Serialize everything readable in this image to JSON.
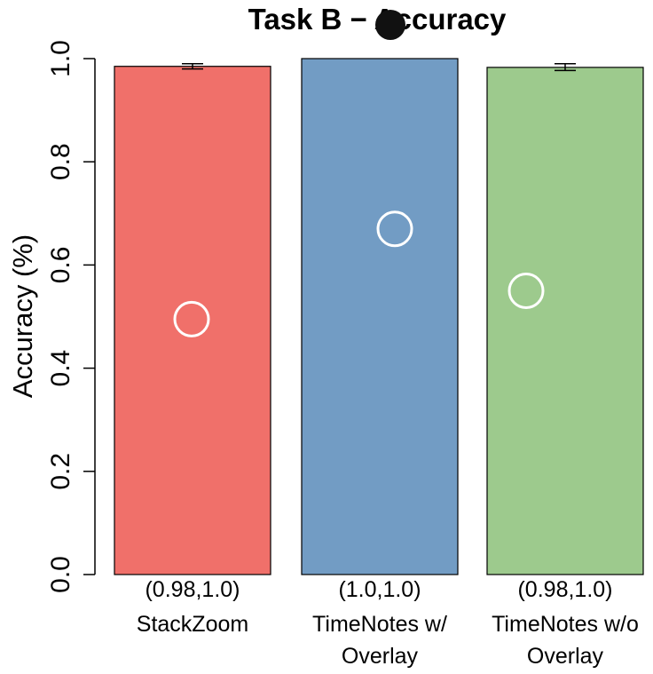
{
  "chart_data": {
    "type": "bar",
    "title": "Task B − Accuracy",
    "ylabel": "Accuracy (%)",
    "xlabel": "",
    "ylim": [
      0,
      1
    ],
    "yticks": [
      "0.0",
      "0.2",
      "0.4",
      "0.6",
      "0.8",
      "1.0"
    ],
    "grid": false,
    "categories": [
      "StackZoom",
      "TimeNotes w/ Overlay",
      "TimeNotes w/o Overlay"
    ],
    "category_lines": [
      [
        "StackZoom"
      ],
      [
        "TimeNotes w/",
        "Overlay"
      ],
      [
        "TimeNotes w/o",
        "Overlay"
      ]
    ],
    "values": [
      0.985,
      1.0,
      0.983
    ],
    "error_low": [
      0.98,
      1.0,
      0.977
    ],
    "error_high": [
      0.99,
      1.0,
      0.99
    ],
    "ci_labels": [
      "(0.98,1.0)",
      "(1.0,1.0)",
      "(0.98,1.0)"
    ],
    "markers": [
      0.495,
      0.67,
      0.55
    ],
    "colors": [
      "#f0706a",
      "#729cc4",
      "#9dca8d"
    ]
  }
}
